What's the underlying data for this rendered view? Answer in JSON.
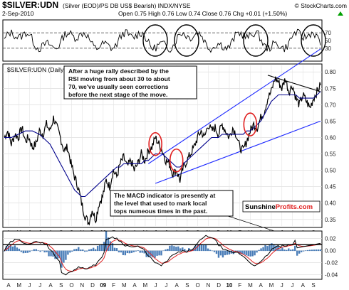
{
  "header": {
    "symbol": "$SILVER:UDN",
    "description": "(Silver (EOD)/PS DB US$ Bearish) INDX/NYSE",
    "credit": "© StockCharts.com",
    "date": "2-Sep-2010",
    "quote": "Open 0.75  High 0.76  Low 0.74  Close 0.76  Chg +0.01 (+1.50%)",
    "quote_arrow_color": "#00a000"
  },
  "chart_data": [
    {
      "type": "line",
      "name": "rsi-panel",
      "ylim": [
        0,
        100
      ],
      "y_ticks": [
        "70",
        "50",
        "30"
      ],
      "levels": [
        70,
        30
      ],
      "circle_count": 4
    },
    {
      "type": "line",
      "name": "price-panel",
      "label": "$SILVER:UDN (Daily)",
      "ylim": [
        0.33,
        0.82
      ],
      "y_ticks": [
        "0.80",
        "0.75",
        "0.70",
        "0.65",
        "0.60",
        "0.55",
        "0.50",
        "0.45",
        "0.40",
        "0.35"
      ],
      "series": [
        {
          "name": "price",
          "color": "#000000",
          "values": [
            0.6,
            0.62,
            0.58,
            0.61,
            0.6,
            0.63,
            0.59,
            0.6,
            0.57,
            0.58,
            0.62,
            0.61,
            0.64,
            0.62,
            0.66,
            0.63,
            0.6,
            0.56,
            0.57,
            0.52,
            0.48,
            0.45,
            0.4,
            0.36,
            0.34,
            0.38,
            0.35,
            0.4,
            0.42,
            0.47,
            0.45,
            0.5,
            0.48,
            0.52,
            0.54,
            0.51,
            0.53,
            0.5,
            0.52,
            0.55,
            0.53,
            0.56,
            0.57,
            0.6,
            0.58,
            0.56,
            0.53,
            0.52,
            0.49,
            0.5,
            0.47,
            0.51,
            0.53,
            0.55,
            0.57,
            0.6,
            0.62,
            0.6,
            0.64,
            0.62,
            0.63,
            0.61,
            0.64,
            0.62,
            0.6,
            0.63,
            0.61,
            0.57,
            0.56,
            0.59,
            0.62,
            0.64,
            0.63,
            0.66,
            0.68,
            0.72,
            0.74,
            0.78,
            0.77,
            0.75,
            0.78,
            0.74,
            0.76,
            0.72,
            0.7,
            0.73,
            0.71,
            0.69,
            0.72,
            0.74,
            0.76
          ]
        },
        {
          "name": "moving-average",
          "color": "#00008b",
          "values": [
            0.6,
            0.6,
            0.6,
            0.605,
            0.61,
            0.615,
            0.62,
            0.62,
            0.62,
            0.615,
            0.61,
            0.6,
            0.59,
            0.58,
            0.56,
            0.54,
            0.52,
            0.5,
            0.48,
            0.46,
            0.44,
            0.43,
            0.42,
            0.42,
            0.43,
            0.44,
            0.45,
            0.46,
            0.47,
            0.48,
            0.49,
            0.5,
            0.51,
            0.51,
            0.52,
            0.52,
            0.52,
            0.52,
            0.52,
            0.52,
            0.53,
            0.53,
            0.54,
            0.55,
            0.55,
            0.55,
            0.54,
            0.53,
            0.52,
            0.51,
            0.51,
            0.52,
            0.53,
            0.54,
            0.55,
            0.56,
            0.57,
            0.58,
            0.59,
            0.6,
            0.6,
            0.6,
            0.61,
            0.61,
            0.61,
            0.61,
            0.61,
            0.61,
            0.61,
            0.62,
            0.62,
            0.63,
            0.64,
            0.65,
            0.67,
            0.69,
            0.71,
            0.72,
            0.73,
            0.73,
            0.73,
            0.73,
            0.73,
            0.73,
            0.72,
            0.72,
            0.72,
            0.72,
            0.72,
            0.73,
            0.74
          ]
        }
      ],
      "channel_lines": [
        {
          "name": "channel-upper",
          "from": [
            41,
            0.52
          ],
          "to": [
            90,
            0.87
          ],
          "color": "#1f2bff"
        },
        {
          "name": "channel-lower",
          "from": [
            43,
            0.46
          ],
          "to": [
            90,
            0.65
          ],
          "color": "#1f2bff"
        },
        {
          "name": "resistance-line",
          "from": [
            75,
            0.79
          ],
          "to": [
            90,
            0.74
          ],
          "color": "#000000"
        }
      ],
      "highlight_ellipses": [
        {
          "name": "rally-ellipse-1",
          "x": 43,
          "y": 0.58
        },
        {
          "name": "rally-ellipse-2",
          "x": 49,
          "y": 0.53
        },
        {
          "name": "rally-ellipse-3",
          "x": 70,
          "y": 0.64
        }
      ],
      "annotations": [
        {
          "name": "rsi-note",
          "lines": [
            "After a huge rally described by the",
            "RSI moving from about 30 to about",
            "70, we've usually seen corrections",
            "before the next stage of the move."
          ]
        },
        {
          "name": "macd-note",
          "lines": [
            "The MACD indicator is presently at",
            "the level that used to mark local",
            "tops numeous times in the past."
          ]
        }
      ],
      "watermark": {
        "part1": "Sunshine",
        "part2": "Profits.com"
      }
    },
    {
      "type": "line",
      "name": "macd-panel",
      "ylim": [
        -0.045,
        0.03
      ],
      "y_ticks": [
        "0.02",
        "0.00",
        "-0.02",
        "-0.04"
      ],
      "level_line": 0.01
    }
  ],
  "x_axis": {
    "month_labels": [
      "A",
      "M",
      "J",
      "J",
      "A",
      "S",
      "O",
      "N",
      "D",
      "09",
      "F",
      "M",
      "A",
      "M",
      "J",
      "J",
      "A",
      "S",
      "O",
      "N",
      "D",
      "10",
      "F",
      "M",
      "A",
      "M",
      "J",
      "J",
      "A",
      "S"
    ],
    "bold_labels": [
      "09",
      "10"
    ]
  }
}
